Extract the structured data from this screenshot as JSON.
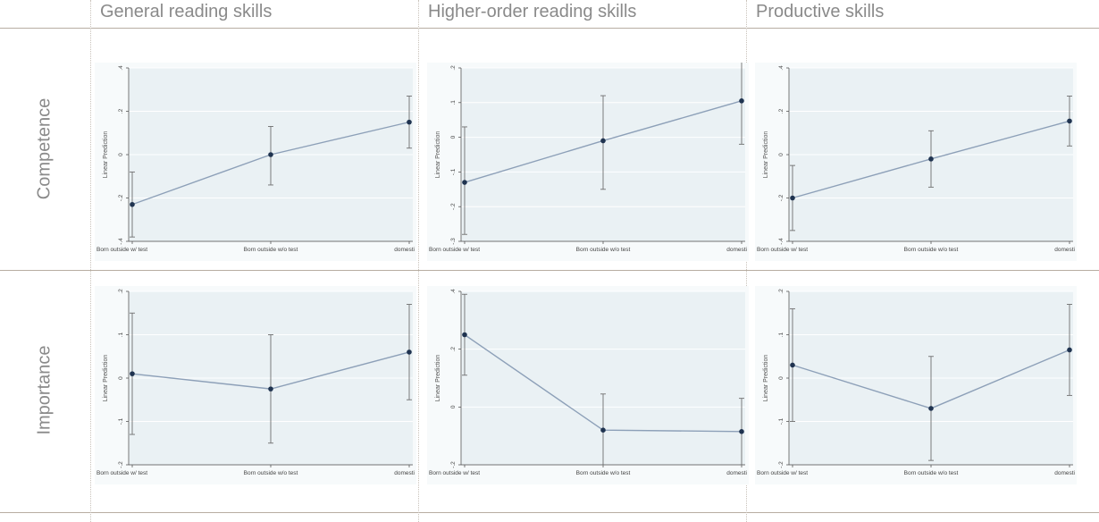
{
  "column_headers": [
    "General reading skills",
    "Higher-order reading skills",
    "Productive skills"
  ],
  "row_headers": [
    "Competence",
    "Importance"
  ],
  "colors": {
    "line": "#8da0b8",
    "point": "#1f3350",
    "whisker": "#6f6f6f",
    "plot_bg": "#eaf1f4",
    "grid": "#ffffff"
  },
  "chart_data": [
    {
      "type": "line",
      "row": "Competence",
      "column": "General reading skills",
      "ylabel": "Linear Prediction",
      "categories": [
        "Born outside w/ test",
        "Born outside w/o test",
        "domesti"
      ],
      "values": [
        -0.23,
        0.0,
        0.15
      ],
      "ci_low": [
        -0.38,
        -0.14,
        0.03
      ],
      "ci_high": [
        -0.08,
        0.13,
        0.27
      ],
      "ylim": [
        -0.4,
        0.4
      ],
      "yticks": [
        -0.4,
        -0.2,
        0,
        0.2,
        0.4
      ],
      "ytick_labels": [
        "-.4",
        "-.2",
        "0",
        ".2",
        ".4"
      ],
      "grid": true
    },
    {
      "type": "line",
      "row": "Competence",
      "column": "Higher-order reading skills",
      "ylabel": "Linear Prediction",
      "categories": [
        "Born outside w/ test",
        "Born outside w/o test",
        "domesti"
      ],
      "values": [
        -0.13,
        -0.01,
        0.105
      ],
      "ci_low": [
        -0.28,
        -0.15,
        -0.02
      ],
      "ci_high": [
        0.03,
        0.12,
        0.23
      ],
      "ylim": [
        -0.3,
        0.2
      ],
      "yticks": [
        -0.3,
        -0.2,
        -0.1,
        0,
        0.1,
        0.2
      ],
      "ytick_labels": [
        "-.3",
        "-.2",
        "-.1",
        "0",
        ".1",
        ".2"
      ],
      "grid": true
    },
    {
      "type": "line",
      "row": "Competence",
      "column": "Productive skills",
      "ylabel": "Linear Prediction",
      "categories": [
        "Born outside w/ test",
        "Born outside w/o test",
        "domesti"
      ],
      "values": [
        -0.2,
        -0.02,
        0.155
      ],
      "ci_low": [
        -0.35,
        -0.15,
        0.04
      ],
      "ci_high": [
        -0.05,
        0.11,
        0.27
      ],
      "ylim": [
        -0.4,
        0.4
      ],
      "yticks": [
        -0.4,
        -0.2,
        0,
        0.2,
        0.4
      ],
      "ytick_labels": [
        "-.4",
        "-.2",
        "0",
        ".2",
        ".4"
      ],
      "grid": true
    },
    {
      "type": "line",
      "row": "Importance",
      "column": "General reading skills",
      "ylabel": "Linear Prediction",
      "categories": [
        "Born outside w/ test",
        "Born outside w/o test",
        "domesti"
      ],
      "values": [
        0.01,
        -0.025,
        0.06
      ],
      "ci_low": [
        -0.13,
        -0.15,
        -0.05
      ],
      "ci_high": [
        0.15,
        0.1,
        0.17
      ],
      "ylim": [
        -0.2,
        0.2
      ],
      "yticks": [
        -0.2,
        -0.1,
        0,
        0.1,
        0.2
      ],
      "ytick_labels": [
        "-.2",
        "-.1",
        "0",
        ".1",
        ".2"
      ],
      "grid": true
    },
    {
      "type": "line",
      "row": "Importance",
      "column": "Higher-order reading skills",
      "ylabel": "Linear Prediction",
      "categories": [
        "Born outside w/ test",
        "Born outside w/o test",
        "domesti"
      ],
      "values": [
        0.25,
        -0.08,
        -0.085
      ],
      "ci_low": [
        0.11,
        -0.2,
        -0.2
      ],
      "ci_high": [
        0.39,
        0.045,
        0.03
      ],
      "ylim": [
        -0.2,
        0.4
      ],
      "yticks": [
        -0.2,
        0,
        0.2,
        0.4
      ],
      "ytick_labels": [
        "-.2",
        "0",
        ".2",
        ".4"
      ],
      "grid": true
    },
    {
      "type": "line",
      "row": "Importance",
      "column": "Productive skills",
      "ylabel": "Linear Prediction",
      "categories": [
        "Born outside w/ test",
        "Born outside w/o test",
        "domesti"
      ],
      "values": [
        0.03,
        -0.07,
        0.065
      ],
      "ci_low": [
        -0.1,
        -0.19,
        -0.04
      ],
      "ci_high": [
        0.16,
        0.05,
        0.17
      ],
      "ylim": [
        -0.2,
        0.2
      ],
      "yticks": [
        -0.2,
        -0.1,
        0,
        0.1,
        0.2
      ],
      "ytick_labels": [
        "-.2",
        "-.1",
        "0",
        ".1",
        ".2"
      ],
      "grid": true
    }
  ]
}
